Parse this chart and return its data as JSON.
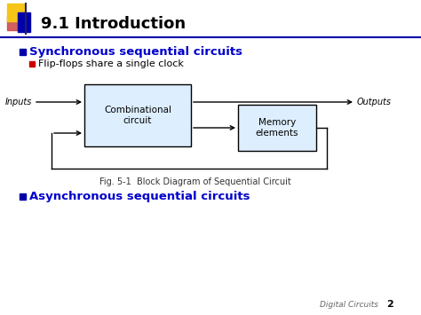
{
  "title": "9.1 Introduction",
  "bg_color": "#ffffff",
  "title_color": "#000000",
  "title_fontsize": 13,
  "bullet1_text": "Synchronous sequential circuits",
  "bullet1_color": "#0000cc",
  "bullet1_fontsize": 9.5,
  "bullet2_text": "Flip-flops share a single clock",
  "bullet2_color": "#000000",
  "bullet2_fontsize": 8,
  "bullet3_text": "Asynchronous sequential circuits",
  "bullet3_color": "#0000cc",
  "bullet3_fontsize": 9.5,
  "comb_box_label": "Combinational\ncircuit",
  "mem_box_label": "Memory\nelements",
  "fig_caption": "Fig. 5-1  Block Diagram of Sequential Circuit",
  "inputs_label": "Inputs",
  "outputs_label": "Outputs",
  "box_fill_color": "#ddeeff",
  "box_edge_color": "#000000",
  "footer_text": "Digital Circuits",
  "footer_num": "2",
  "accent_yellow": "#f5c518",
  "accent_red": "#cc2200",
  "accent_blue": "#0000aa",
  "line_color": "#000000"
}
